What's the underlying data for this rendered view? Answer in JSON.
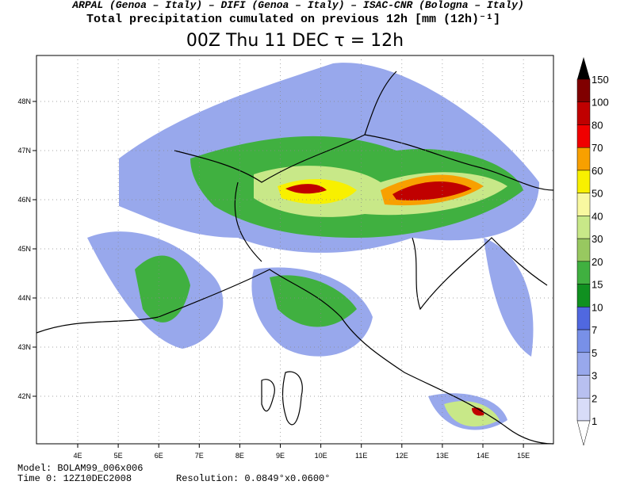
{
  "header": {
    "institutions": "ARPAL (Genoa – Italy)  –  DIFI (Genoa – Italy)  –  ISAC-CNR (Bologna – Italy)",
    "field": "Total precipitation cumulated on previous 12h [mm (12h)⁻¹]",
    "title": "00Z Thu 11 DEC  τ = 12h"
  },
  "map": {
    "lon_labels": [
      "4E",
      "5E",
      "6E",
      "7E",
      "8E",
      "9E",
      "10E",
      "11E",
      "12E",
      "13E",
      "14E",
      "15E"
    ],
    "lat_labels": [
      "48N",
      "47N",
      "46N",
      "45N",
      "44N",
      "43N",
      "42N"
    ]
  },
  "colorbar": {
    "levels": [
      {
        "label": "150",
        "color": "#800000"
      },
      {
        "label": "100",
        "color": "#c00000"
      },
      {
        "label": "80",
        "color": "#f00000"
      },
      {
        "label": "70",
        "color": "#f8a000"
      },
      {
        "label": "60",
        "color": "#f8f000"
      },
      {
        "label": "50",
        "color": "#f8f8a0"
      },
      {
        "label": "40",
        "color": "#c8e888"
      },
      {
        "label": "30",
        "color": "#98c860"
      },
      {
        "label": "20",
        "color": "#40b040"
      },
      {
        "label": "15",
        "color": "#109020"
      },
      {
        "label": "10",
        "color": "#5068e0"
      },
      {
        "label": "7",
        "color": "#7890e8"
      },
      {
        "label": "5",
        "color": "#98a8ec"
      },
      {
        "label": "3",
        "color": "#b8c0f0"
      },
      {
        "label": "2",
        "color": "#d8dcf8"
      },
      {
        "label": "1",
        "color": "#ffffff"
      }
    ]
  },
  "footer": {
    "model": "Model: BOLAM99_006x006",
    "time": "Time 0: 12Z10DEC2008",
    "resolution": "Resolution: 0.0849°x0.0600°"
  }
}
